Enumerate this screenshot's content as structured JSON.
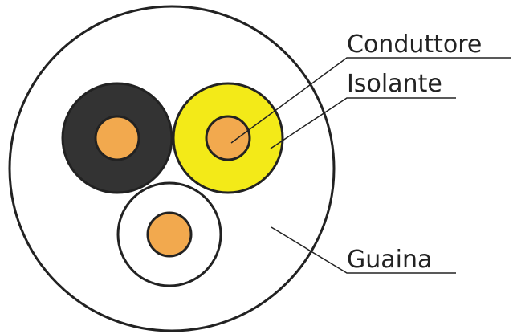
{
  "labels": [
    "Conduttore",
    "Isolante",
    "Guaina"
  ]
}
